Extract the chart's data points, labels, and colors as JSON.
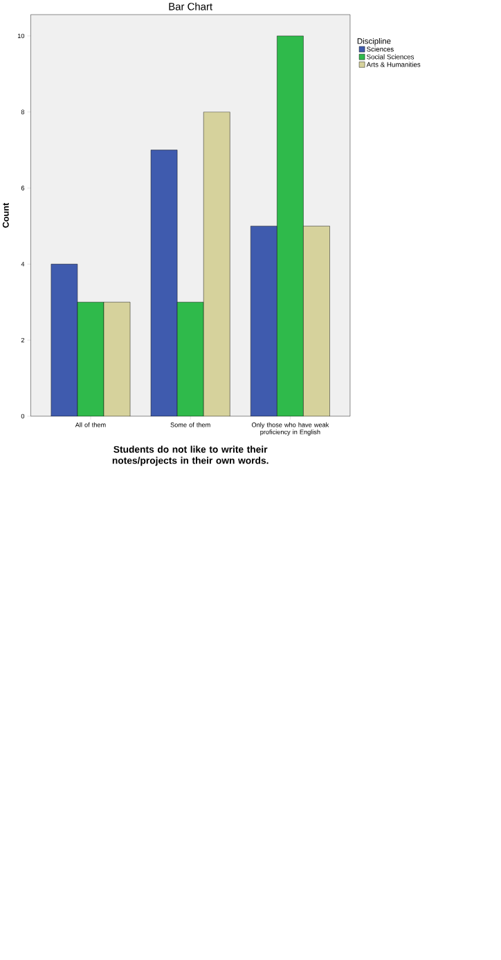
{
  "chart_data": {
    "type": "bar",
    "title": "Bar Chart",
    "xlabel": "Students do not like to write their notes/projects in their own words.",
    "ylabel": "Count",
    "legend_title": "Discipline",
    "legend": "top right",
    "categories": [
      "All of them",
      "Some of them",
      "Only those who have weak proficiency in English"
    ],
    "series": [
      {
        "name": "Sciences",
        "color": "#3f5bae",
        "values": [
          4,
          7,
          5
        ]
      },
      {
        "name": "Social Sciences",
        "color": "#2fba4b",
        "values": [
          3,
          3,
          10
        ]
      },
      {
        "name": "Arts & Humanities",
        "color": "#d6d29c",
        "values": [
          3,
          8,
          5
        ]
      }
    ],
    "ylim": [
      0,
      10.56
    ],
    "yticks": [
      0,
      2,
      4,
      6,
      8,
      10
    ]
  }
}
